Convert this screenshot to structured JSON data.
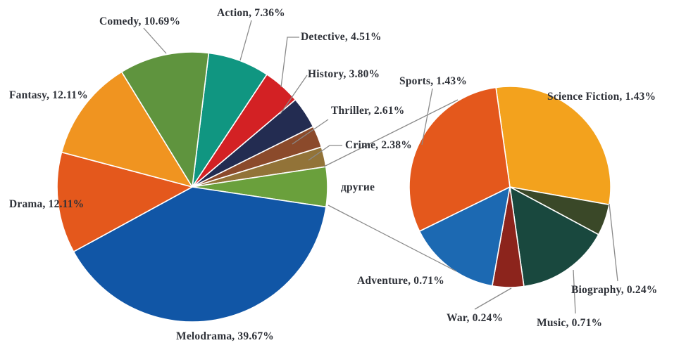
{
  "figure": {
    "background": "#ffffff",
    "text_color": "#2e3138",
    "leader_line_color": "#8a8a8a"
  },
  "chart_data": {
    "type": "pie",
    "subtype": "pie-of-pie",
    "unit": "%",
    "legend_position": "none",
    "grid": false,
    "main_pie": {
      "start_angle_deg": 7,
      "clockwise": true,
      "total": 100,
      "slices": [
        {
          "label": "Action",
          "value": 7.36,
          "color": "#109681"
        },
        {
          "label": "Detective",
          "value": 4.51,
          "color": "#d32124"
        },
        {
          "label": "History",
          "value": 3.8,
          "color": "#232c51"
        },
        {
          "label": "Thriller",
          "value": 2.61,
          "color": "#8b4a2b"
        },
        {
          "label": "Crime",
          "value": 2.38,
          "color": "#927338"
        },
        {
          "label": "другие",
          "value": 4.76,
          "color": "#6aa03c"
        },
        {
          "label": "Melodrama",
          "value": 39.67,
          "color": "#1156a6"
        },
        {
          "label": "Drama",
          "value": 12.11,
          "color": "#e4581c"
        },
        {
          "label": "Fantasy",
          "value": 12.11,
          "color": "#f09420"
        },
        {
          "label": "Comedy",
          "value": 10.69,
          "color": "#5f943e"
        }
      ]
    },
    "secondary_pie": {
      "represents": "другие",
      "start_angle_deg": -8,
      "clockwise": true,
      "total": 4.76,
      "slices": [
        {
          "label": "Science Fiction",
          "value": 1.43,
          "color": "#f3a21d"
        },
        {
          "label": "Biography",
          "value": 0.24,
          "color": "#3a4828"
        },
        {
          "label": "Music",
          "value": 0.71,
          "color": "#19483e"
        },
        {
          "label": "War",
          "value": 0.24,
          "color": "#8c241c"
        },
        {
          "label": "Adventure",
          "value": 0.71,
          "color": "#1c69b2"
        },
        {
          "label": "Sports",
          "value": 1.43,
          "color": "#e4581c"
        }
      ]
    }
  },
  "labels": {
    "comedy": "Comedy, 10.69%",
    "action": "Action, 7.36%",
    "detective": "Detective, 4.51%",
    "history": "History, 3.80%",
    "sports": "Sports, 1.43%",
    "thriller": "Thriller, 2.61%",
    "crime": "Crime, 2.38%",
    "fantasy": "Fantasy, 12.11%",
    "drama": "Drama, 12.11%",
    "drugie": "другие",
    "melodrama": "Melodrama, 39.67%",
    "science_fiction": "Science Fiction, 1.43%",
    "adventure": "Adventure, 0.71%",
    "war": "War, 0.24%",
    "music": "Music, 0.71%",
    "biography": "Biography, 0.24%"
  }
}
